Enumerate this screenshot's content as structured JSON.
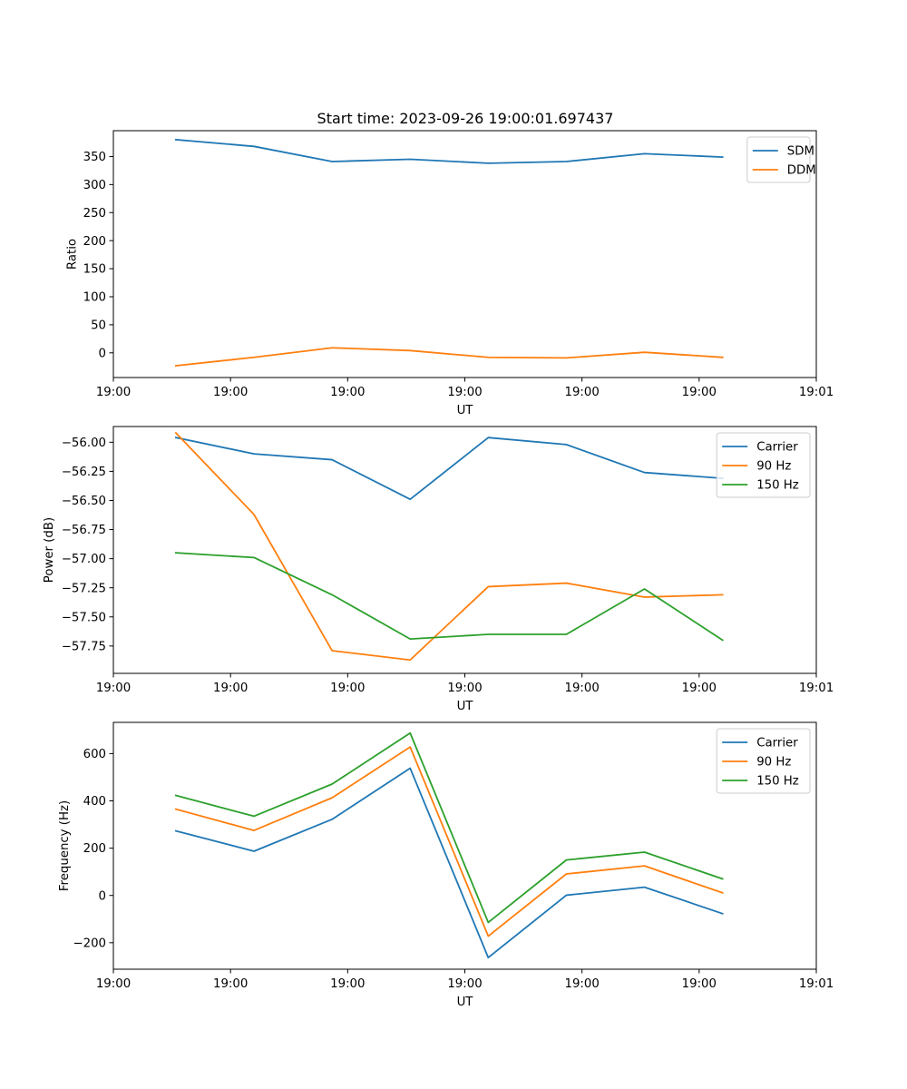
{
  "figure_title": "Start time: 2023-09-26 19:00:01.697437",
  "colors": {
    "blue": "#1f77b4",
    "orange": "#ff7f0e",
    "green": "#2ca02c"
  },
  "chart_data": [
    {
      "type": "line",
      "title": "Start time: 2023-09-26 19:00:01.697437",
      "xlabel": "UT",
      "ylabel": "Ratio",
      "x": [
        1,
        2,
        3,
        4,
        5,
        6,
        7,
        8
      ],
      "xlim": [
        0.2,
        9.2
      ],
      "x_ticks": [
        0.2,
        1.7,
        3.2,
        4.7,
        6.2,
        7.7,
        9.2
      ],
      "x_tick_labels": [
        "19:00",
        "19:00",
        "19:00",
        "19:00",
        "19:00",
        "19:00",
        "19:01"
      ],
      "ylim": [
        -44,
        396
      ],
      "y_ticks": [
        0,
        50,
        100,
        150,
        200,
        250,
        300,
        350
      ],
      "y_tick_labels": [
        "0",
        "50",
        "100",
        "150",
        "200",
        "250",
        "300",
        "350"
      ],
      "series": [
        {
          "name": "SDM",
          "color": "blue",
          "values": [
            380,
            368,
            341,
            345,
            338,
            341,
            355,
            349
          ]
        },
        {
          "name": "DDM",
          "color": "orange",
          "values": [
            -23,
            -8,
            9,
            4,
            -8,
            -9,
            1,
            -8
          ]
        }
      ],
      "legend": "top-right"
    },
    {
      "type": "line",
      "title": "",
      "xlabel": "UT",
      "ylabel": "Power (dB)",
      "x": [
        1,
        2,
        3,
        4,
        5,
        6,
        7,
        8
      ],
      "xlim": [
        0.2,
        9.2
      ],
      "x_ticks": [
        0.2,
        1.7,
        3.2,
        4.7,
        6.2,
        7.7,
        9.2
      ],
      "x_tick_labels": [
        "19:00",
        "19:00",
        "19:00",
        "19:00",
        "19:00",
        "19:00",
        "19:01"
      ],
      "ylim": [
        -57.985,
        -55.865
      ],
      "y_ticks": [
        -57.75,
        -57.5,
        -57.25,
        -57.0,
        -56.75,
        -56.5,
        -56.25,
        -56.0
      ],
      "y_tick_labels": [
        "−57.75",
        "−57.50",
        "−57.25",
        "−57.00",
        "−56.75",
        "−56.50",
        "−56.25",
        "−56.00"
      ],
      "series": [
        {
          "name": "Carrier",
          "color": "blue",
          "values": [
            -55.96,
            -56.1,
            -56.15,
            -56.49,
            -55.96,
            -56.02,
            -56.26,
            -56.31
          ]
        },
        {
          "name": "90 Hz",
          "color": "orange",
          "values": [
            -55.92,
            -56.62,
            -57.79,
            -57.87,
            -57.24,
            -57.21,
            -57.33,
            -57.31
          ]
        },
        {
          "name": "150 Hz",
          "color": "green",
          "values": [
            -56.95,
            -56.99,
            -57.31,
            -57.69,
            -57.65,
            -57.65,
            -57.26,
            -57.7
          ]
        }
      ],
      "legend": "top-right"
    },
    {
      "type": "line",
      "title": "",
      "xlabel": "UT",
      "ylabel": "Frequency (Hz)",
      "x": [
        1,
        2,
        3,
        4,
        5,
        6,
        7,
        8
      ],
      "xlim": [
        0.2,
        9.2
      ],
      "x_ticks": [
        0.2,
        1.7,
        3.2,
        4.7,
        6.2,
        7.7,
        9.2
      ],
      "x_tick_labels": [
        "19:00",
        "19:00",
        "19:00",
        "19:00",
        "19:00",
        "19:00",
        "19:01"
      ],
      "ylim": [
        -312,
        732
      ],
      "y_ticks": [
        -200,
        0,
        200,
        400,
        600
      ],
      "y_tick_labels": [
        "−200",
        "0",
        "200",
        "400",
        "600"
      ],
      "series": [
        {
          "name": "Carrier",
          "color": "blue",
          "values": [
            273,
            187,
            322,
            538,
            -263,
            1,
            35,
            -77
          ]
        },
        {
          "name": "90 Hz",
          "color": "orange",
          "values": [
            365,
            275,
            413,
            628,
            -172,
            91,
            125,
            11
          ]
        },
        {
          "name": "150 Hz",
          "color": "green",
          "values": [
            423,
            335,
            471,
            687,
            -114,
            150,
            183,
            70
          ]
        }
      ],
      "legend": "top-right"
    }
  ]
}
